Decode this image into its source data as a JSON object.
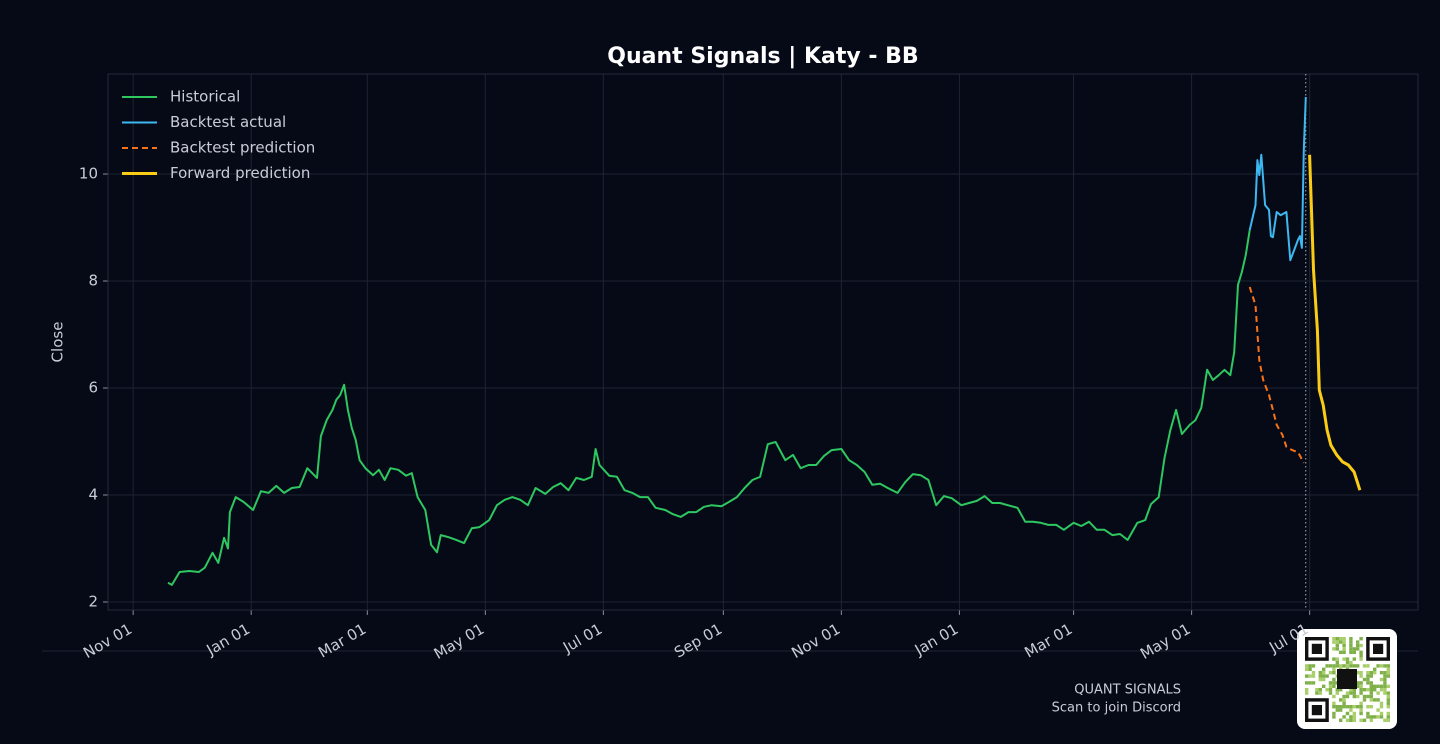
{
  "chart_data": {
    "type": "line",
    "title": "Quant Signals | Katy - BB",
    "ylabel": "Close",
    "xlim": [
      -13,
      664
    ],
    "ylim": [
      1.85,
      11.87
    ],
    "xticks": [
      {
        "value": 0,
        "label": "Nov 01"
      },
      {
        "value": 61,
        "label": "Jan 01"
      },
      {
        "value": 121,
        "label": "Mar 01"
      },
      {
        "value": 182,
        "label": "May 01"
      },
      {
        "value": 243,
        "label": "Jul 01"
      },
      {
        "value": 305,
        "label": "Sep 01"
      },
      {
        "value": 366,
        "label": "Nov 01"
      },
      {
        "value": 427,
        "label": "Jan 01"
      },
      {
        "value": 486,
        "label": "Mar 01"
      },
      {
        "value": 547,
        "label": "May 01"
      },
      {
        "value": 608,
        "label": "Jul 01"
      }
    ],
    "yticks": [
      2,
      4,
      6,
      8,
      10
    ],
    "grid": true,
    "legend": "upper-left",
    "vline_x": 606,
    "series": [
      {
        "name": "Historical",
        "color": "#2ec760",
        "dash": false,
        "x": [
          18,
          20,
          24,
          29,
          34,
          37,
          41,
          44,
          47,
          49,
          50,
          53,
          57,
          62,
          66,
          70,
          74,
          78,
          82,
          86,
          90,
          95,
          97,
          100,
          103,
          105,
          107,
          109,
          111,
          113,
          115,
          117,
          120,
          124,
          127,
          130,
          133,
          137,
          141,
          144,
          147,
          151,
          154,
          157,
          159,
          163,
          167,
          171,
          175,
          179,
          184,
          188,
          192,
          196,
          200,
          204,
          208,
          213,
          217,
          221,
          225,
          229,
          233,
          237,
          239,
          241,
          246,
          250,
          254,
          258,
          262,
          266,
          270,
          275,
          279,
          283,
          287,
          291,
          295,
          299,
          304,
          308,
          312,
          316,
          320,
          324,
          328,
          332,
          337,
          341,
          345,
          349,
          353,
          357,
          361,
          366,
          370,
          374,
          378,
          382,
          386,
          390,
          395,
          399,
          403,
          407,
          411,
          415,
          419,
          423,
          428,
          432,
          436,
          440,
          444,
          448,
          452,
          457,
          461,
          465,
          469,
          473,
          477,
          481,
          486,
          490,
          494,
          498,
          502,
          506,
          510,
          514,
          519,
          523,
          526,
          530,
          533,
          536,
          539,
          542,
          546,
          549,
          552,
          555,
          558,
          561,
          564,
          567,
          569,
          571,
          573,
          575,
          577
        ],
        "values": [
          2.36,
          2.32,
          2.56,
          2.58,
          2.56,
          2.64,
          2.92,
          2.73,
          3.2,
          3.0,
          3.68,
          3.96,
          3.87,
          3.72,
          4.07,
          4.04,
          4.17,
          4.04,
          4.13,
          4.15,
          4.5,
          4.32,
          5.1,
          5.4,
          5.59,
          5.78,
          5.87,
          6.06,
          5.59,
          5.25,
          5.03,
          4.65,
          4.5,
          4.37,
          4.47,
          4.28,
          4.5,
          4.47,
          4.36,
          4.41,
          3.96,
          3.72,
          3.07,
          2.93,
          3.25,
          3.21,
          3.16,
          3.1,
          3.38,
          3.4,
          3.53,
          3.81,
          3.91,
          3.96,
          3.91,
          3.81,
          4.13,
          4.02,
          4.15,
          4.22,
          4.09,
          4.32,
          4.28,
          4.34,
          4.86,
          4.56,
          4.36,
          4.34,
          4.09,
          4.04,
          3.96,
          3.96,
          3.76,
          3.72,
          3.64,
          3.59,
          3.68,
          3.68,
          3.78,
          3.81,
          3.79,
          3.87,
          3.96,
          4.13,
          4.28,
          4.34,
          4.95,
          4.99,
          4.65,
          4.75,
          4.5,
          4.56,
          4.56,
          4.73,
          4.84,
          4.86,
          4.65,
          4.56,
          4.43,
          4.19,
          4.21,
          4.13,
          4.04,
          4.24,
          4.39,
          4.37,
          4.28,
          3.81,
          3.98,
          3.94,
          3.81,
          3.85,
          3.89,
          3.98,
          3.85,
          3.85,
          3.81,
          3.76,
          3.5,
          3.5,
          3.48,
          3.44,
          3.44,
          3.35,
          3.48,
          3.42,
          3.5,
          3.35,
          3.35,
          3.25,
          3.27,
          3.16,
          3.48,
          3.53,
          3.83,
          3.96,
          4.69,
          5.21,
          5.59,
          5.14,
          5.31,
          5.4,
          5.63,
          6.34,
          6.15,
          6.24,
          6.34,
          6.24,
          6.67,
          7.93,
          8.17,
          8.49,
          8.95
        ]
      },
      {
        "name": "Backtest actual",
        "color": "#3db8f0",
        "dash": false,
        "x": [
          577,
          580,
          581,
          582,
          583,
          585,
          587,
          588,
          589,
          591,
          593,
          596,
          598,
          600,
          602,
          603,
          604,
          605,
          606
        ],
        "values": [
          8.95,
          9.42,
          10.26,
          9.98,
          10.36,
          9.42,
          9.33,
          8.84,
          8.82,
          9.29,
          9.23,
          9.29,
          8.39,
          8.58,
          8.77,
          8.84,
          8.62,
          10.45,
          11.44
        ]
      },
      {
        "name": "Backtest prediction",
        "color": "#f97316",
        "dash": true,
        "x": [
          577,
          580,
          582,
          584,
          587,
          589,
          591,
          594,
          596,
          599,
          602,
          605
        ],
        "values": [
          7.89,
          7.55,
          6.52,
          6.15,
          5.87,
          5.59,
          5.31,
          5.12,
          4.9,
          4.84,
          4.8,
          4.6
        ]
      },
      {
        "name": "Forward prediction",
        "color": "#facc15",
        "dash": false,
        "x": [
          608,
          610,
          612,
          613,
          615,
          617,
          619,
          622,
          625,
          628,
          631,
          634
        ],
        "values": [
          10.36,
          8.21,
          7.08,
          5.96,
          5.68,
          5.21,
          4.93,
          4.75,
          4.62,
          4.56,
          4.43,
          4.09
        ]
      }
    ]
  },
  "footer": {
    "brand": "QUANT SIGNALS",
    "caption": "Scan to join Discord"
  }
}
